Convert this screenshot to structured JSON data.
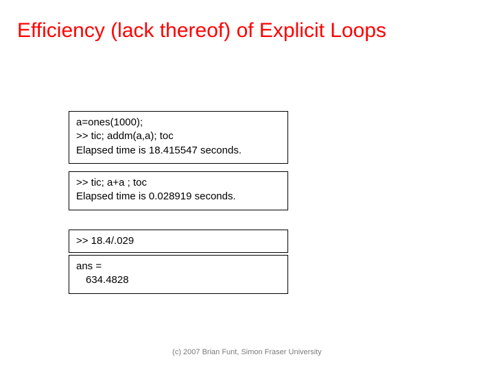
{
  "colors": {
    "title_color": "#ff0000",
    "box_border": "#000000",
    "background": "#ffffff",
    "footer_color": "#7a7a7a"
  },
  "typography": {
    "title_font": "Comic Sans MS",
    "title_fontsize": 30,
    "body_font": "Arial",
    "body_fontsize": 15,
    "footer_fontsize": 11
  },
  "title": "Efficiency (lack thereof) of Explicit Loops",
  "box1": {
    "line1": "a=ones(1000);",
    "line2": ">> tic; addm(a,a); toc",
    "line3": "Elapsed time is 18.415547 seconds."
  },
  "box2": {
    "line1": ">> tic; a+a ; toc",
    "line2": "Elapsed time is 0.028919 seconds."
  },
  "box3": {
    "line1": ">> 18.4/.029"
  },
  "box4": {
    "line1": "ans =",
    "line2": "634.4828"
  },
  "footer": "(c) 2007 Brian Funt, Simon Fraser University"
}
